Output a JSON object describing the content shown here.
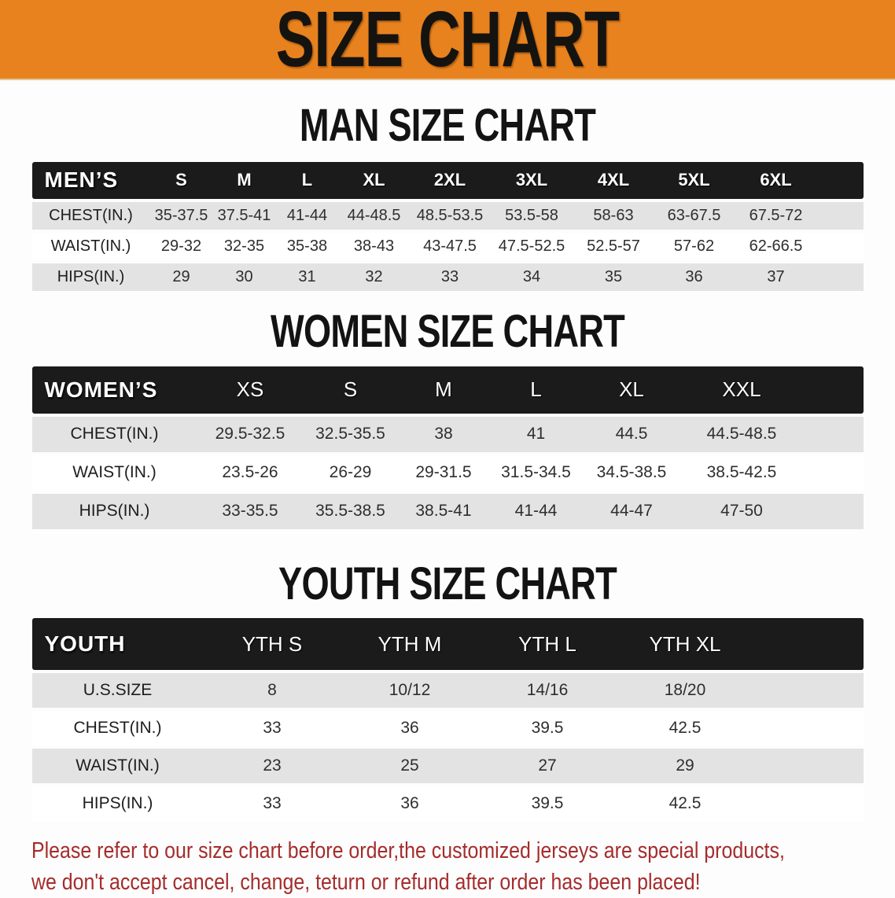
{
  "banner": {
    "title": "SIZE CHART",
    "bg_color": "#E8821E"
  },
  "sections": [
    {
      "title": "MAN SIZE CHART",
      "table": {
        "header_label": "MEN’S",
        "columns": [
          "S",
          "M",
          "L",
          "XL",
          "2XL",
          "3XL",
          "4XL",
          "5XL",
          "6XL"
        ],
        "rows": [
          {
            "label": "CHEST(IN.)",
            "values": [
              "35-37.5",
              "37.5-41",
              "41-44",
              "44-48.5",
              "48.5-53.5",
              "53.5-58",
              "58-63",
              "63-67.5",
              "67.5-72"
            ]
          },
          {
            "label": "WAIST(IN.)",
            "values": [
              "29-32",
              "32-35",
              "35-38",
              "38-43",
              "43-47.5",
              "47.5-52.5",
              "52.5-57",
              "57-62",
              "62-66.5"
            ]
          },
          {
            "label": "HIPS(IN.)",
            "values": [
              "29",
              "30",
              "31",
              "32",
              "33",
              "34",
              "35",
              "36",
              "37"
            ]
          }
        ]
      }
    },
    {
      "title": "WOMEN SIZE CHART",
      "table": {
        "header_label": "WOMEN’S",
        "columns": [
          "XS",
          "S",
          "M",
          "L",
          "XL",
          "XXL"
        ],
        "rows": [
          {
            "label": "CHEST(IN.)",
            "values": [
              "29.5-32.5",
              "32.5-35.5",
              "38",
              "41",
              "44.5",
              "44.5-48.5"
            ]
          },
          {
            "label": "WAIST(IN.)",
            "values": [
              "23.5-26",
              "26-29",
              "29-31.5",
              "31.5-34.5",
              "34.5-38.5",
              "38.5-42.5"
            ]
          },
          {
            "label": "HIPS(IN.)",
            "values": [
              "33-35.5",
              "35.5-38.5",
              "38.5-41",
              "41-44",
              "44-47",
              "47-50"
            ]
          }
        ]
      }
    },
    {
      "title": "YOUTH SIZE CHART",
      "table": {
        "header_label": "YOUTH",
        "columns": [
          "YTH S",
          "YTH M",
          "YTH L",
          "YTH XL"
        ],
        "rows": [
          {
            "label": "U.S.SIZE",
            "values": [
              "8",
              "10/12",
              "14/16",
              "18/20"
            ]
          },
          {
            "label": "CHEST(IN.)",
            "values": [
              "33",
              "36",
              "39.5",
              "42.5"
            ]
          },
          {
            "label": "WAIST(IN.)",
            "values": [
              "23",
              "25",
              "27",
              "29"
            ]
          },
          {
            "label": "HIPS(IN.)",
            "values": [
              "33",
              "36",
              "39.5",
              "42.5"
            ]
          }
        ]
      }
    }
  ],
  "disclaimer": {
    "line1": "Please refer to our size chart before order,the customized jerseys are special products,",
    "line2": "we don't accept cancel, change, teturn or refund after order has been placed!",
    "color": "#A52C2C"
  }
}
